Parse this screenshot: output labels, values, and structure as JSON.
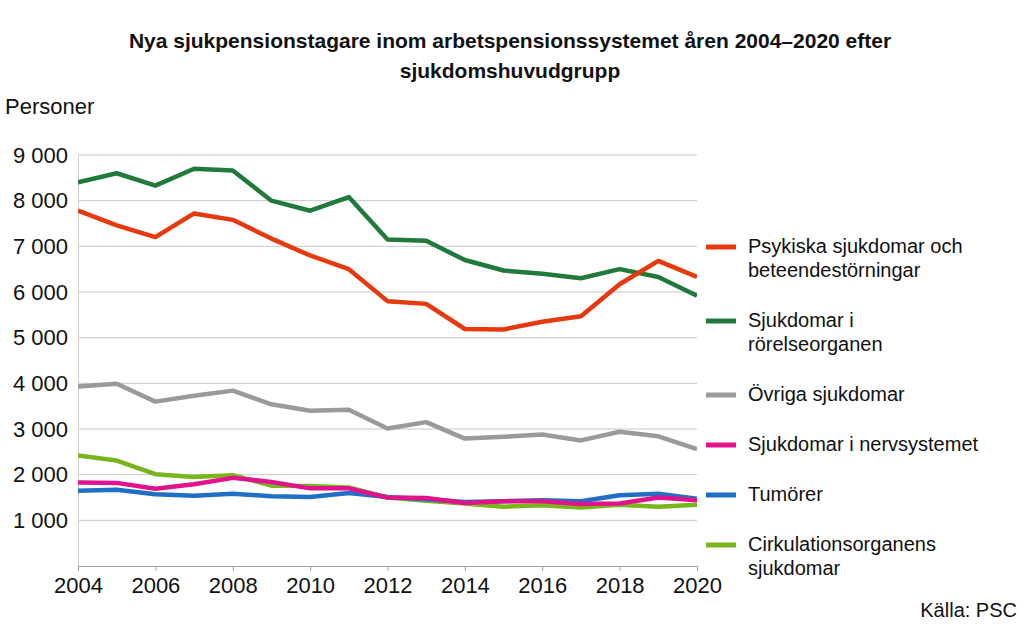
{
  "chart_data": {
    "type": "line",
    "title": "Nya sjukpensionstagare inom arbetspensionssystemet åren 2004–2020 efter sjukdomshuvudgrupp",
    "ylabel": "Personer",
    "annotations": [
      "Källa: PSC"
    ],
    "x": [
      2004,
      2005,
      2006,
      2007,
      2008,
      2009,
      2010,
      2011,
      2012,
      2013,
      2014,
      2015,
      2016,
      2017,
      2018,
      2019,
      2020
    ],
    "xlim": [
      2004,
      2020
    ],
    "xticks": [
      2004,
      2006,
      2008,
      2010,
      2012,
      2014,
      2016,
      2018,
      2020
    ],
    "ylim": [
      0,
      9000
    ],
    "yticks": [
      {
        "value": 1000,
        "label": "1 000"
      },
      {
        "value": 2000,
        "label": "2 000"
      },
      {
        "value": 3000,
        "label": "3 000"
      },
      {
        "value": 4000,
        "label": "4 000"
      },
      {
        "value": 5000,
        "label": "5 000"
      },
      {
        "value": 6000,
        "label": "6 000"
      },
      {
        "value": 7000,
        "label": "7 000"
      },
      {
        "value": 8000,
        "label": "8 000"
      },
      {
        "value": 9000,
        "label": "9 000"
      }
    ],
    "grid": true,
    "legend": "right",
    "series": [
      {
        "name": "Psykiska sjukdomar och beteendestörningar",
        "color": "#e8380d",
        "values": [
          7780,
          7460,
          7200,
          7720,
          7580,
          7170,
          6800,
          6500,
          5800,
          5740,
          5190,
          5180,
          5350,
          5470,
          6170,
          6680,
          6330
        ]
      },
      {
        "name": "Sjukdomar i rörelseorganen",
        "color": "#217a3c",
        "values": [
          8400,
          8600,
          8330,
          8700,
          8660,
          8000,
          7780,
          8080,
          7150,
          7120,
          6700,
          6470,
          6400,
          6300,
          6500,
          6330,
          5920
        ]
      },
      {
        "name": "Övriga sjukdomar",
        "color": "#9a9a9a",
        "values": [
          3930,
          3990,
          3600,
          3730,
          3840,
          3540,
          3400,
          3420,
          3010,
          3150,
          2790,
          2830,
          2880,
          2750,
          2940,
          2840,
          2560
        ]
      },
      {
        "name": "Sjukdomar i nervsystemet",
        "color": "#e0138c",
        "values": [
          1830,
          1820,
          1690,
          1790,
          1930,
          1840,
          1700,
          1700,
          1500,
          1490,
          1380,
          1420,
          1420,
          1360,
          1370,
          1500,
          1440
        ]
      },
      {
        "name": "Tumörer",
        "color": "#1f6fc5",
        "values": [
          1650,
          1670,
          1570,
          1540,
          1580,
          1530,
          1510,
          1600,
          1510,
          1460,
          1400,
          1420,
          1440,
          1420,
          1550,
          1580,
          1470
        ]
      },
      {
        "name": "Cirkulationsorganens sjukdomar",
        "color": "#7ab51d",
        "values": [
          2420,
          2310,
          2010,
          1950,
          1990,
          1760,
          1750,
          1720,
          1500,
          1430,
          1370,
          1300,
          1330,
          1280,
          1340,
          1300,
          1340
        ]
      }
    ]
  }
}
